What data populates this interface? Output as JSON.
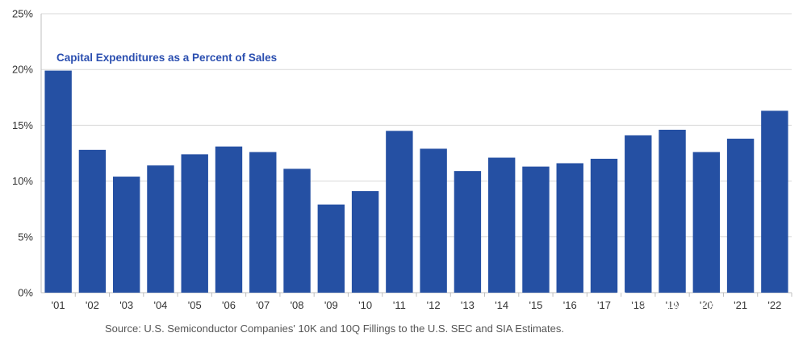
{
  "chart_data": {
    "type": "bar",
    "title": "Capital Expenditures as a Percent of Sales",
    "categories": [
      "'01",
      "'02",
      "'03",
      "'04",
      "'05",
      "'06",
      "'07",
      "'08",
      "'09",
      "'10",
      "'11",
      "'12",
      "'13",
      "'14",
      "'15",
      "'16",
      "'17",
      "'18",
      "'19",
      "'20",
      "'21",
      "'22"
    ],
    "values": [
      19.9,
      12.8,
      10.4,
      11.4,
      12.4,
      13.1,
      12.6,
      11.1,
      7.9,
      9.1,
      14.5,
      12.9,
      10.9,
      12.1,
      11.3,
      11.6,
      12.0,
      14.1,
      14.6,
      12.6,
      13.8,
      16.3
    ],
    "y_ticks": [
      "0%",
      "5%",
      "10%",
      "15%",
      "20%",
      "25%"
    ],
    "ylim": [
      0,
      25
    ],
    "grid": true,
    "bar_color": "#2550a3",
    "grid_color": "#d9d9d9"
  },
  "source_note": "Source: U.S. Semiconductor Companies' 10K and 10Q Fillings to the U.S. SEC and SIA Estimates.",
  "watermark": {
    "text": "半导体行业观察",
    "icon": "wechat-icon"
  }
}
